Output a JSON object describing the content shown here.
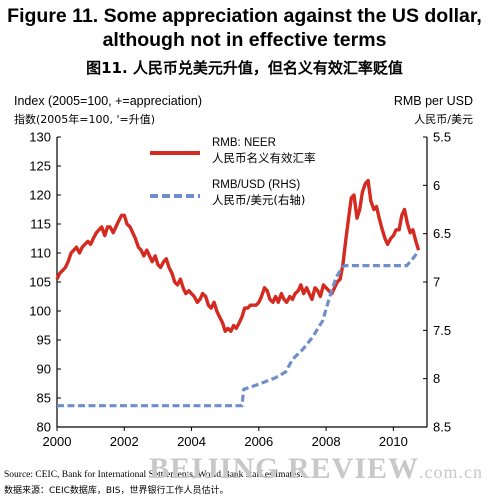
{
  "titles": {
    "en": "Figure 11. Some appreciation against the US dollar, although not in effective terms",
    "cn": "图11. 人民币兑美元升值，但名义有效汇率贬值"
  },
  "axes": {
    "left_caption_en": "Index (2005=100, +=appreciation)",
    "left_caption_cn": "指数(2005年=100, '=升值)",
    "right_caption_en": "RMB per USD",
    "right_caption_cn": "人民币/美元"
  },
  "source": {
    "en": "Source: CEIC, Bank for International Settlements, World Bank staff estimates.",
    "cn": "数据来源：CEIC数据库，BIS，世界银行工作人员估计。"
  },
  "watermark": {
    "text": "BEIJING REVIEW",
    "suffix": ".com.cn"
  },
  "colors": {
    "neer": "#d42a20",
    "usd": "#6f8fcb"
  },
  "chart_data": {
    "type": "line",
    "x_ticks": [
      "2000",
      "2002",
      "2004",
      "2006",
      "2008",
      "2010"
    ],
    "xlim": [
      2000,
      2011
    ],
    "ylim_left": [
      80,
      130
    ],
    "left_ticks": [
      80,
      85,
      90,
      95,
      100,
      105,
      110,
      115,
      120,
      125,
      130
    ],
    "ylim_right": [
      8.5,
      5.5
    ],
    "right_ticks": [
      "5.5",
      "6",
      "6.5",
      "7",
      "7.5",
      "8",
      "8.5"
    ],
    "right_tick_values": [
      5.5,
      6,
      6.5,
      7,
      7.5,
      8,
      8.5
    ],
    "grid": false,
    "series": [
      {
        "name": "RMB: NEER",
        "name_cn": "人民币名义有效汇率",
        "axis": "left",
        "style": "solid",
        "x": [
          2000.0,
          2000.08,
          2000.17,
          2000.25,
          2000.33,
          2000.42,
          2000.5,
          2000.58,
          2000.67,
          2000.75,
          2000.83,
          2000.92,
          2001.0,
          2001.08,
          2001.17,
          2001.25,
          2001.33,
          2001.42,
          2001.5,
          2001.58,
          2001.67,
          2001.75,
          2001.83,
          2001.92,
          2002.0,
          2002.08,
          2002.17,
          2002.25,
          2002.33,
          2002.42,
          2002.5,
          2002.58,
          2002.67,
          2002.75,
          2002.83,
          2002.92,
          2003.0,
          2003.08,
          2003.17,
          2003.25,
          2003.33,
          2003.42,
          2003.5,
          2003.58,
          2003.67,
          2003.75,
          2003.83,
          2003.92,
          2004.0,
          2004.08,
          2004.17,
          2004.25,
          2004.33,
          2004.42,
          2004.5,
          2004.58,
          2004.67,
          2004.75,
          2004.83,
          2004.92,
          2005.0,
          2005.08,
          2005.17,
          2005.25,
          2005.33,
          2005.42,
          2005.5,
          2005.58,
          2005.67,
          2005.75,
          2005.83,
          2005.92,
          2006.0,
          2006.08,
          2006.17,
          2006.25,
          2006.33,
          2006.42,
          2006.5,
          2006.58,
          2006.67,
          2006.75,
          2006.83,
          2006.92,
          2007.0,
          2007.08,
          2007.17,
          2007.25,
          2007.33,
          2007.42,
          2007.5,
          2007.58,
          2007.67,
          2007.75,
          2007.83,
          2007.92,
          2008.0,
          2008.08,
          2008.17,
          2008.25,
          2008.33,
          2008.42,
          2008.5,
          2008.58,
          2008.67,
          2008.75,
          2008.83,
          2008.92,
          2009.0,
          2009.08,
          2009.17,
          2009.25,
          2009.33,
          2009.42,
          2009.5,
          2009.58,
          2009.67,
          2009.75,
          2009.83,
          2009.92,
          2010.0,
          2010.08,
          2010.17,
          2010.25,
          2010.33,
          2010.42,
          2010.5,
          2010.58,
          2010.67,
          2010.75
        ],
        "values": [
          105.5,
          106.5,
          107.0,
          107.5,
          108.5,
          110.0,
          110.5,
          111.0,
          110.0,
          111.0,
          111.5,
          112.0,
          111.5,
          112.5,
          113.5,
          114.0,
          114.5,
          113.0,
          114.5,
          114.5,
          113.5,
          114.5,
          115.5,
          116.5,
          116.5,
          115.0,
          114.5,
          113.5,
          112.5,
          111.0,
          110.5,
          109.5,
          110.5,
          109.5,
          108.5,
          109.5,
          108.0,
          107.5,
          108.5,
          109.0,
          107.5,
          106.5,
          105.0,
          104.5,
          105.5,
          104.0,
          103.0,
          103.5,
          103.0,
          102.5,
          101.5,
          102.0,
          103.0,
          102.5,
          101.0,
          100.5,
          101.5,
          100.0,
          99.0,
          98.0,
          96.5,
          97.0,
          96.5,
          97.5,
          97.0,
          98.0,
          99.0,
          100.5,
          100.5,
          101.0,
          101.0,
          101.0,
          101.5,
          102.5,
          104.0,
          103.5,
          102.0,
          101.5,
          102.5,
          101.5,
          103.0,
          102.0,
          101.5,
          102.5,
          102.0,
          103.0,
          103.5,
          104.5,
          103.0,
          104.0,
          103.0,
          102.0,
          104.0,
          103.5,
          102.5,
          104.5,
          104.0,
          103.5,
          103.0,
          104.0,
          105.0,
          105.5,
          108.0,
          112.0,
          116.0,
          119.5,
          120.0,
          116.0,
          117.5,
          120.5,
          122.0,
          122.5,
          119.0,
          117.5,
          118.0,
          116.0,
          114.0,
          112.5,
          111.5,
          112.5,
          113.0,
          114.0,
          114.0,
          116.5,
          117.5,
          115.0,
          113.5,
          114.0,
          112.0,
          110.5
        ]
      },
      {
        "name": "RMB/USD (RHS)",
        "name_cn": "人民币/美元(右轴)",
        "axis": "right",
        "style": "dashed",
        "x": [
          2000.0,
          2005.5,
          2005.55,
          2005.9,
          2006.2,
          2006.5,
          2006.8,
          2007.0,
          2007.3,
          2007.6,
          2007.9,
          2008.1,
          2008.3,
          2008.5,
          2008.6,
          2009.0,
          2009.5,
          2010.0,
          2010.4,
          2010.55,
          2010.75
        ],
        "values": [
          8.28,
          8.28,
          8.11,
          8.07,
          8.03,
          7.99,
          7.93,
          7.8,
          7.7,
          7.57,
          7.4,
          7.16,
          6.95,
          6.84,
          6.83,
          6.83,
          6.83,
          6.83,
          6.83,
          6.77,
          6.68
        ]
      }
    ]
  }
}
